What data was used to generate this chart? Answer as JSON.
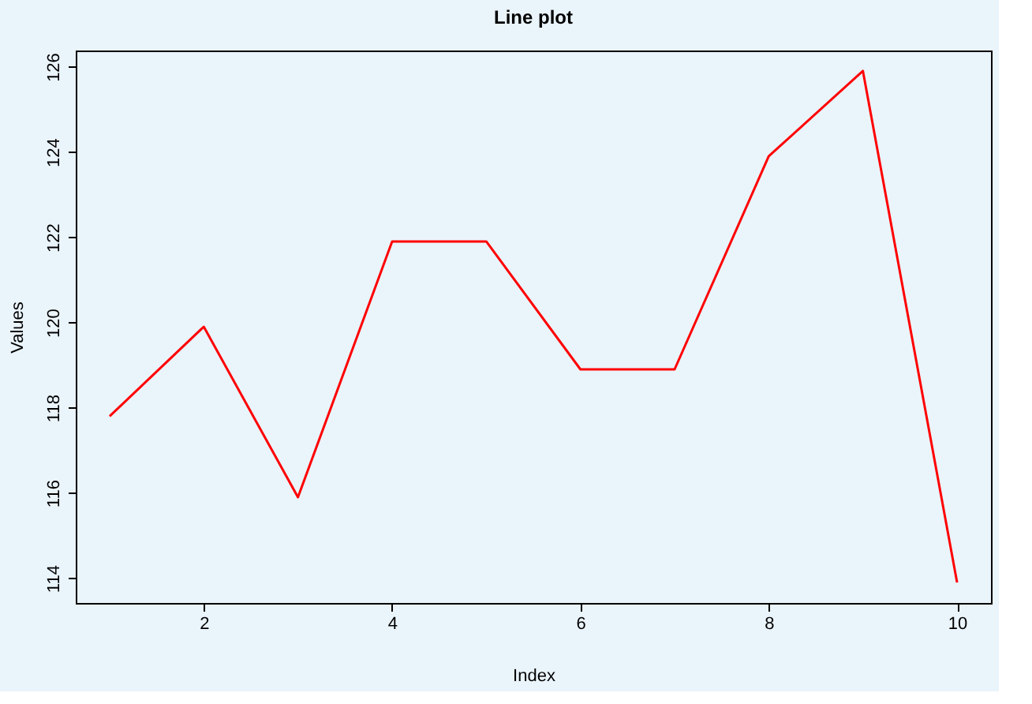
{
  "chart_data": {
    "type": "line",
    "title": "Line plot",
    "xlabel": "Index",
    "ylabel": "Values",
    "x": [
      1,
      2,
      3,
      4,
      5,
      6,
      7,
      8,
      9,
      10
    ],
    "series": [
      {
        "color": "#ff0000",
        "values": [
          117.8,
          119.9,
          115.9,
          121.9,
          121.9,
          118.9,
          118.9,
          123.9,
          125.9,
          113.9
        ]
      }
    ],
    "xlim": [
      0.64,
      10.36
    ],
    "xticks": [
      2,
      4,
      6,
      8,
      10
    ],
    "ylim": [
      113.42,
      126.38
    ],
    "yticks": [
      114,
      116,
      118,
      120,
      122,
      124,
      126
    ],
    "grid": false,
    "marker": "none",
    "line_style": "solid"
  }
}
